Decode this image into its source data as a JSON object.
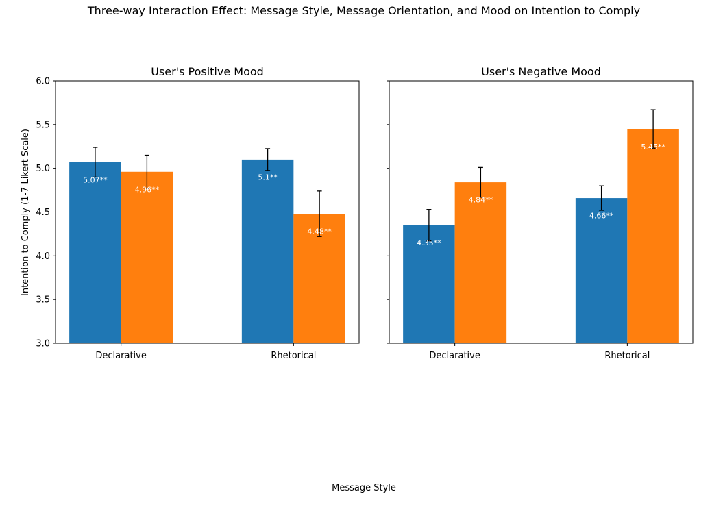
{
  "chart_data": {
    "type": "bar",
    "title": "Three-way Interaction Effect: Message Style, Message Orientation, and Mood on Intention to Comply",
    "xlabel": "Message Style",
    "ylabel": "Intention to Comply (1-7 Likert Scale)",
    "ylim": [
      3.0,
      6.0
    ],
    "yticks": [
      "3.0",
      "3.5",
      "4.0",
      "4.5",
      "5.0",
      "5.5",
      "6.0"
    ],
    "categories": [
      "Declarative",
      "Rhetorical"
    ],
    "series_colors": [
      "#1f77b4",
      "#ff7f0e"
    ],
    "panels": [
      {
        "title": "User's Positive Mood",
        "values": [
          [
            5.07,
            4.96
          ],
          [
            5.1,
            4.48
          ]
        ],
        "errors": [
          [
            0.17,
            0.19
          ],
          [
            0.125,
            0.26
          ]
        ],
        "labels": [
          [
            "5.07**",
            "4.96**"
          ],
          [
            "5.1**",
            "4.48**"
          ]
        ]
      },
      {
        "title": "User's Negative Mood",
        "values": [
          [
            4.35,
            4.84
          ],
          [
            4.66,
            5.45
          ]
        ],
        "errors": [
          [
            0.18,
            0.17
          ],
          [
            0.14,
            0.22
          ]
        ],
        "labels": [
          [
            "4.35**",
            "4.84**"
          ],
          [
            "4.66**",
            "5.45**"
          ]
        ]
      }
    ]
  }
}
